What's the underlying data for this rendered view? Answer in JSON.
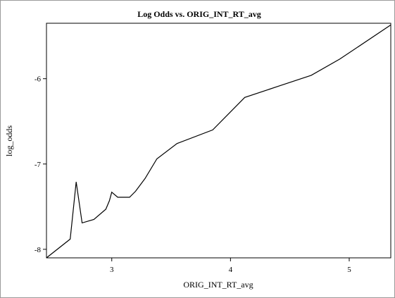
{
  "chart_data": {
    "type": "line",
    "title": "Log Odds vs. ORIG_INT_RT_avg",
    "xlabel": "ORIG_INT_RT_avg",
    "ylabel": "log_odds",
    "xlim": [
      2.45,
      5.35
    ],
    "ylim": [
      -8.1,
      -5.35
    ],
    "x_ticks": [
      3,
      4,
      5
    ],
    "y_ticks": [
      -8,
      -7,
      -6
    ],
    "grid": false,
    "series": [
      {
        "x": [
          2.45,
          2.65,
          2.7,
          2.75,
          2.8,
          2.85,
          2.95,
          2.98,
          3.0,
          3.05,
          3.12,
          3.15,
          3.2,
          3.28,
          3.38,
          3.55,
          3.85,
          4.12,
          4.4,
          4.68,
          4.92,
          5.35
        ],
        "y": [
          -8.1,
          -7.88,
          -7.21,
          -7.69,
          -7.67,
          -7.65,
          -7.53,
          -7.43,
          -7.33,
          -7.39,
          -7.39,
          -7.39,
          -7.32,
          -7.17,
          -6.94,
          -6.76,
          -6.6,
          -6.22,
          -6.09,
          -5.96,
          -5.77,
          -5.37
        ]
      }
    ]
  }
}
